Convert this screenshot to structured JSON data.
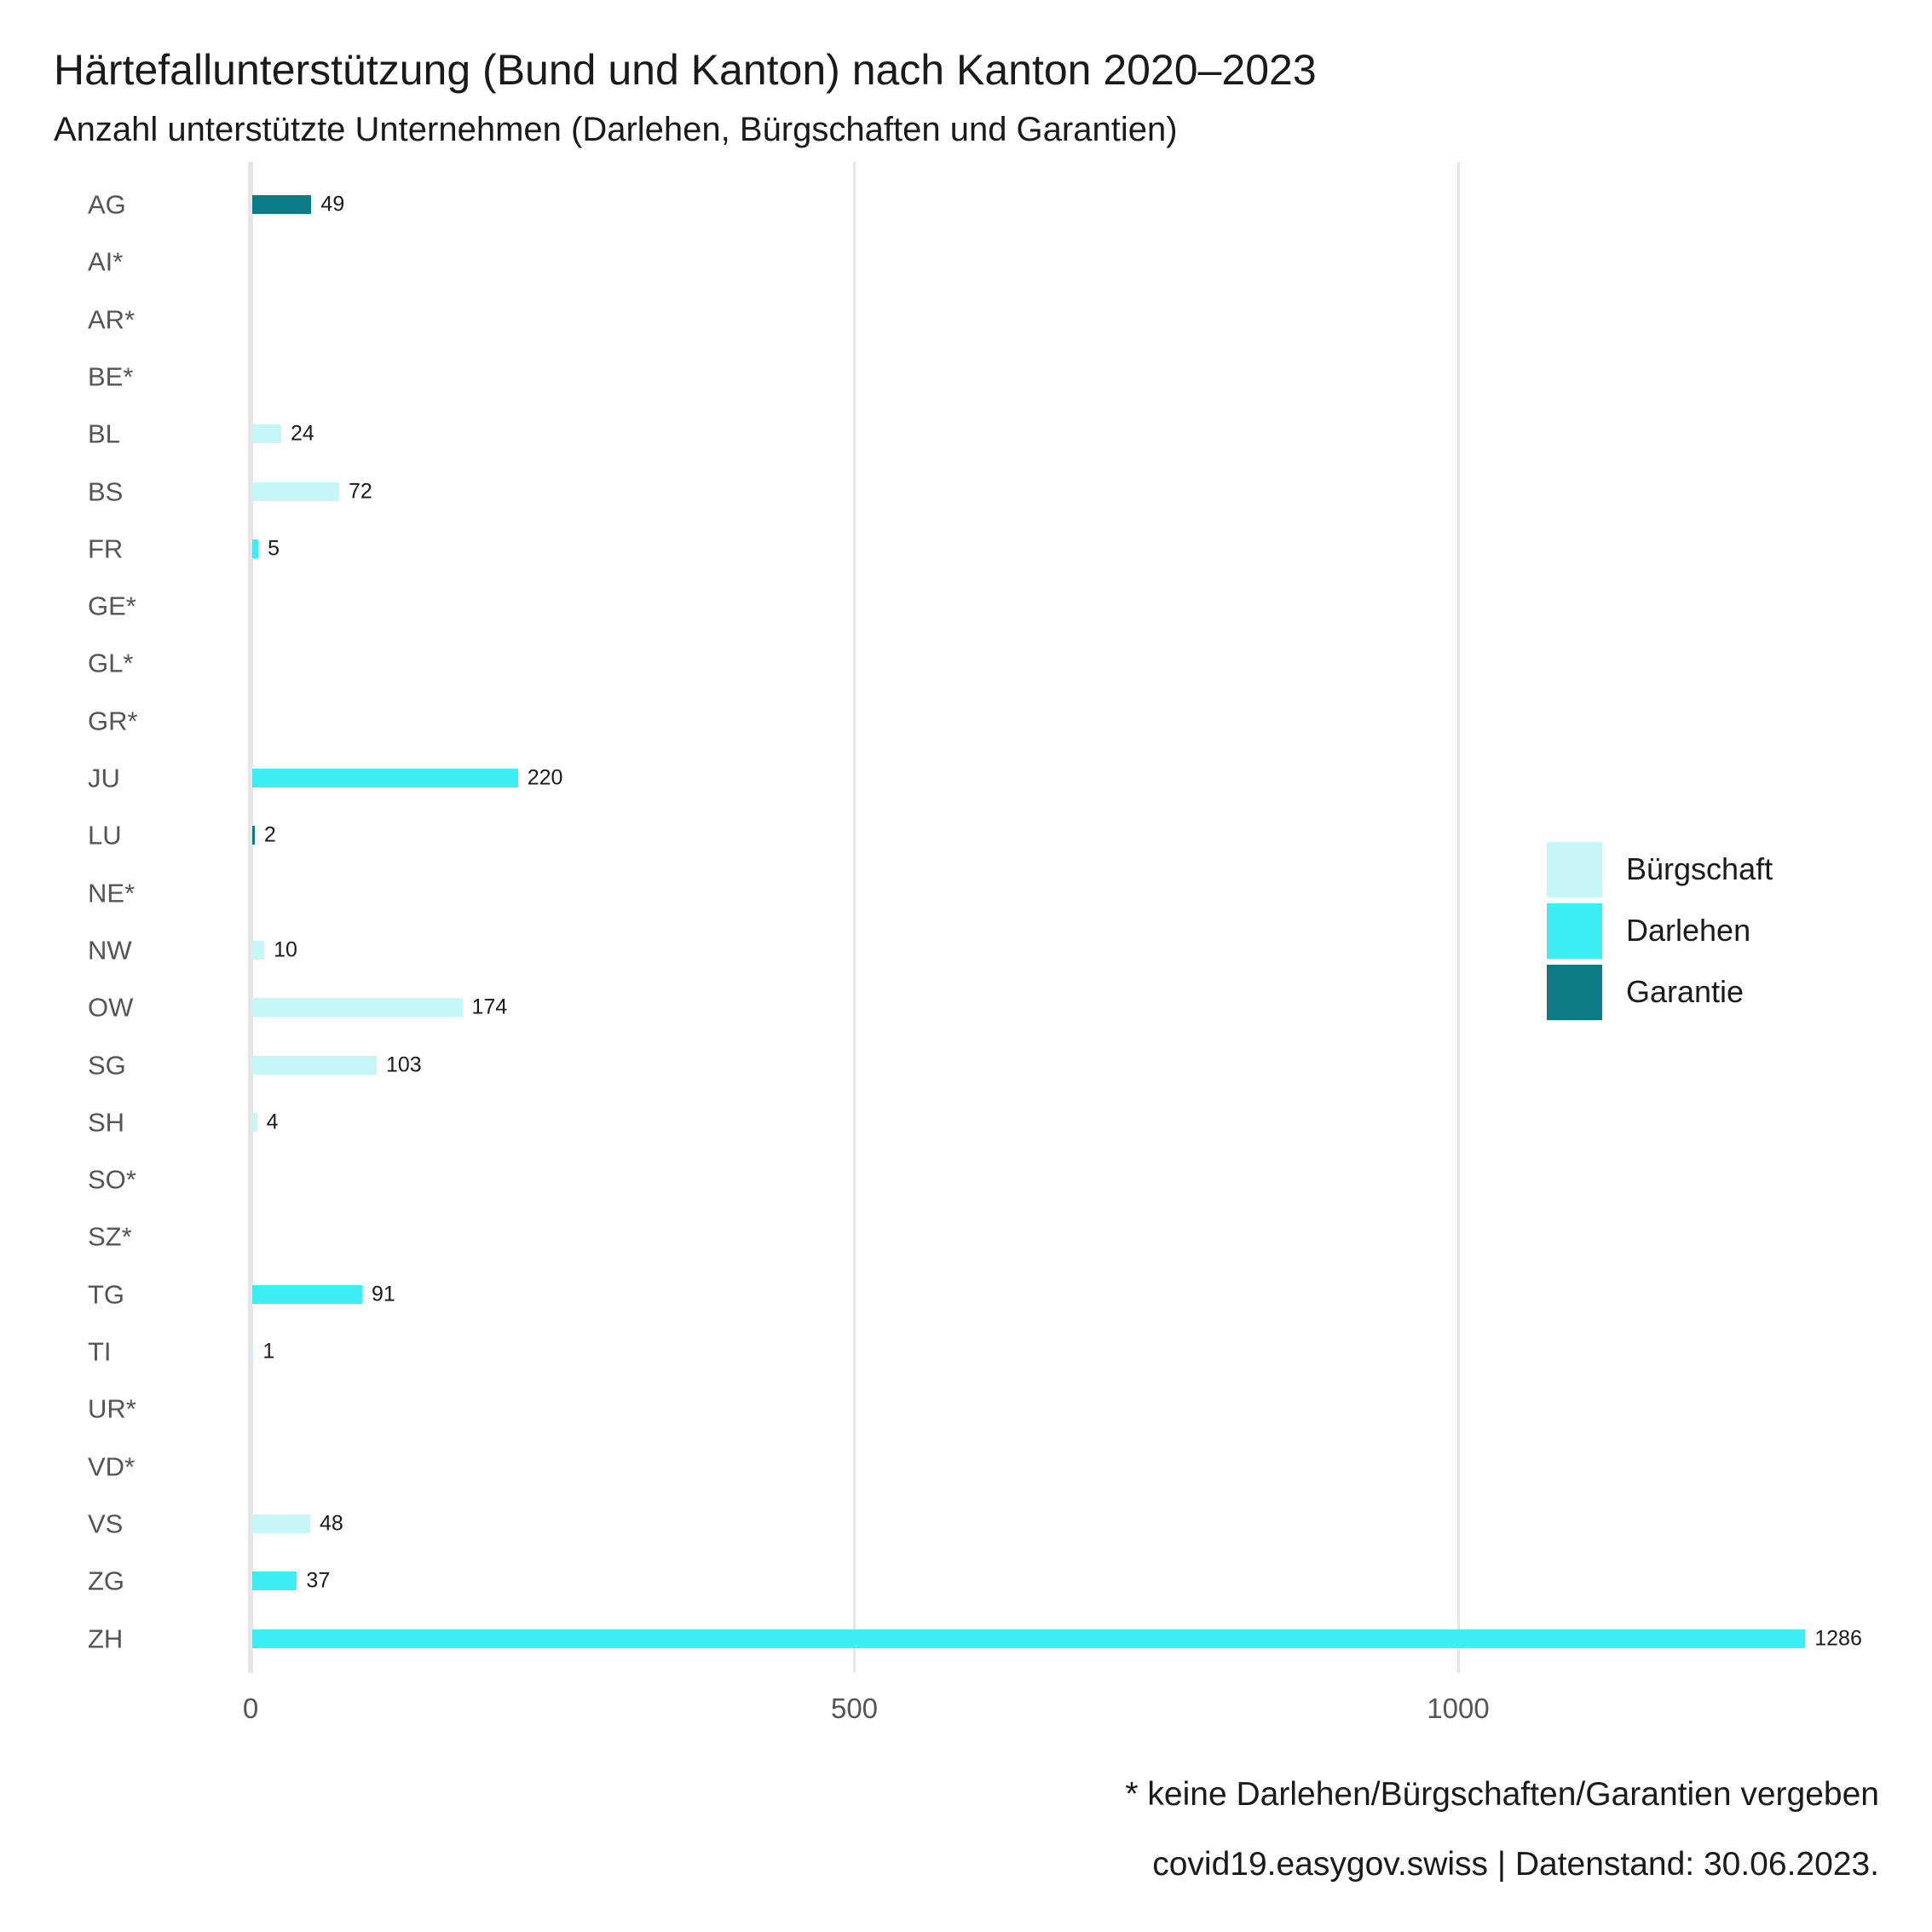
{
  "title": "Härtefallunterstützung (Bund und Kanton) nach Kanton 2020–2023",
  "subtitle": "Anzahl unterstützte Unternehmen (Darlehen, Bürgschaften und Garantien)",
  "footnote": "* keine Darlehen/Bürgschaften/Garantien vergeben",
  "source_line": "covid19.easygov.swiss | Datenstand: 30.06.2023.",
  "colors": {
    "grid": "#E5E5E5",
    "axis_text": "#555555",
    "value_text": "#1A1A1A"
  },
  "legend": {
    "items": [
      {
        "label": "Bürgschaft",
        "color": "#C7F6F8"
      },
      {
        "label": "Darlehen",
        "color": "#3CEDF3"
      },
      {
        "label": "Garantie",
        "color": "#0C7B85"
      }
    ]
  },
  "chart_data": {
    "type": "bar",
    "orientation": "horizontal",
    "title": "Härtefallunterstützung (Bund und Kanton) nach Kanton 2020–2023",
    "subtitle": "Anzahl unterstützte Unternehmen (Darlehen, Bürgschaften und Garantien)",
    "xlabel": "",
    "ylabel": "",
    "xlim": [
      0,
      1390
    ],
    "xticks": [
      0,
      500,
      1000
    ],
    "grid": "vertical-gridlines-only",
    "legend_position": "right",
    "categories": [
      "AG",
      "AI*",
      "AR*",
      "BE*",
      "BL",
      "BS",
      "FR",
      "GE*",
      "GL*",
      "GR*",
      "JU",
      "LU",
      "NE*",
      "NW",
      "OW",
      "SG",
      "SH",
      "SO*",
      "SZ*",
      "TG",
      "TI",
      "UR*",
      "VD*",
      "VS",
      "ZG",
      "ZH"
    ],
    "rows": [
      {
        "canton": "AG",
        "value": 49,
        "type": "Garantie"
      },
      {
        "canton": "AI*",
        "value": null,
        "type": null
      },
      {
        "canton": "AR*",
        "value": null,
        "type": null
      },
      {
        "canton": "BE*",
        "value": null,
        "type": null
      },
      {
        "canton": "BL",
        "value": 24,
        "type": "Bürgschaft"
      },
      {
        "canton": "BS",
        "value": 72,
        "type": "Bürgschaft"
      },
      {
        "canton": "FR",
        "value": 5,
        "type": "Darlehen"
      },
      {
        "canton": "GE*",
        "value": null,
        "type": null
      },
      {
        "canton": "GL*",
        "value": null,
        "type": null
      },
      {
        "canton": "GR*",
        "value": null,
        "type": null
      },
      {
        "canton": "JU",
        "value": 220,
        "type": "Darlehen"
      },
      {
        "canton": "LU",
        "value": 2,
        "type": "Garantie"
      },
      {
        "canton": "NE*",
        "value": null,
        "type": null
      },
      {
        "canton": "NW",
        "value": 10,
        "type": "Bürgschaft"
      },
      {
        "canton": "OW",
        "value": 174,
        "type": "Bürgschaft"
      },
      {
        "canton": "SG",
        "value": 103,
        "type": "Bürgschaft"
      },
      {
        "canton": "SH",
        "value": 4,
        "type": "Bürgschaft"
      },
      {
        "canton": "SO*",
        "value": null,
        "type": null
      },
      {
        "canton": "SZ*",
        "value": null,
        "type": null
      },
      {
        "canton": "TG",
        "value": 91,
        "type": "Darlehen"
      },
      {
        "canton": "TI",
        "value": 1,
        "type": "Bürgschaft"
      },
      {
        "canton": "UR*",
        "value": null,
        "type": null
      },
      {
        "canton": "VD*",
        "value": null,
        "type": null
      },
      {
        "canton": "VS",
        "value": 48,
        "type": "Bürgschaft"
      },
      {
        "canton": "ZG",
        "value": 37,
        "type": "Darlehen"
      },
      {
        "canton": "ZH",
        "value": 1286,
        "type": "Darlehen"
      }
    ]
  }
}
